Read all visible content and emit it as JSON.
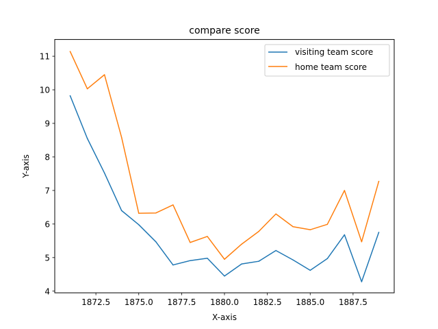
{
  "chart_data": {
    "type": "line",
    "title": "compare score",
    "xlabel": "X-axis",
    "ylabel": "Y-axis",
    "x": [
      1871,
      1872,
      1873,
      1874,
      1875,
      1876,
      1877,
      1878,
      1879,
      1880,
      1881,
      1882,
      1883,
      1884,
      1885,
      1886,
      1887,
      1888,
      1889
    ],
    "series": [
      {
        "name": "visiting team score",
        "color": "#1f77b4",
        "values": [
          9.82,
          8.55,
          7.52,
          6.4,
          5.98,
          5.47,
          4.78,
          4.91,
          4.98,
          4.45,
          4.81,
          4.89,
          5.21,
          4.93,
          4.62,
          4.97,
          5.68,
          4.28,
          5.75
        ]
      },
      {
        "name": "home team score",
        "color": "#ff7f0e",
        "values": [
          11.14,
          10.03,
          10.45,
          8.58,
          6.32,
          6.33,
          6.57,
          5.45,
          5.63,
          4.95,
          5.4,
          5.78,
          6.3,
          5.92,
          5.83,
          5.99,
          7.0,
          5.47,
          7.27
        ]
      }
    ],
    "xlim": [
      1870.1,
      1889.9
    ],
    "ylim": [
      3.95,
      11.5
    ],
    "xticks": [
      1872.5,
      1875.0,
      1877.5,
      1880.0,
      1882.5,
      1885.0,
      1887.5
    ],
    "xtick_labels": [
      "1872.5",
      "1875.0",
      "1877.5",
      "1880.0",
      "1882.5",
      "1885.0",
      "1887.5"
    ],
    "yticks": [
      4,
      5,
      6,
      7,
      8,
      9,
      10,
      11
    ],
    "ytick_labels": [
      "4",
      "5",
      "6",
      "7",
      "8",
      "9",
      "10",
      "11"
    ],
    "legend": "top-right",
    "grid": false
  }
}
